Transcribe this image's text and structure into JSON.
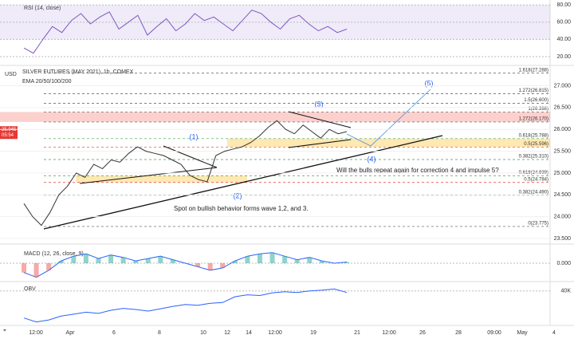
{
  "chart_data": [
    {
      "type": "line",
      "title": "RSI (14, close)",
      "color": "#7e57c2",
      "values": [
        30,
        24,
        40,
        55,
        48,
        62,
        70,
        58,
        66,
        72,
        52,
        60,
        68,
        45,
        55,
        64,
        50,
        58,
        70,
        62,
        66,
        58,
        50,
        62,
        74,
        70,
        60,
        52,
        64,
        68,
        58,
        50,
        55,
        48,
        52
      ],
      "ylim": [
        13.5,
        83
      ],
      "yticks": [
        {
          "value": 80,
          "label": "80.00"
        },
        {
          "value": 60,
          "label": "60.00"
        },
        {
          "value": 40,
          "label": "40.00"
        },
        {
          "value": 20,
          "label": "20.00"
        }
      ]
    },
    {
      "type": "line",
      "title": "SILVER FUTURES (MAY 2021), 1h, COMEX",
      "subtitle": "EMA 20/50/100/200",
      "y_label": "USD",
      "color": "#333333",
      "values": [
        24.3,
        24.0,
        23.8,
        24.1,
        24.5,
        24.7,
        25.0,
        24.9,
        25.2,
        25.1,
        25.3,
        25.25,
        25.45,
        25.6,
        25.5,
        25.45,
        25.4,
        25.3,
        25.2,
        24.95,
        24.85,
        24.8,
        25.4,
        25.5,
        25.55,
        25.6,
        25.7,
        25.85,
        26.05,
        26.2,
        26.0,
        25.9,
        26.1,
        25.95,
        25.8,
        26.0,
        25.9,
        25.95
      ],
      "ylim": [
        23.39,
        27.43
      ],
      "yticks": [
        {
          "value": 27,
          "label": "27.000"
        },
        {
          "value": 26.5,
          "label": "26.500"
        },
        {
          "value": 26,
          "label": "26.000"
        },
        {
          "value": 25.5,
          "label": "25.500"
        },
        {
          "value": 25,
          "label": "25.000"
        },
        {
          "value": 24.5,
          "label": "24.500"
        },
        {
          "value": 24,
          "label": "24.000"
        },
        {
          "value": 23.5,
          "label": "23.500"
        }
      ],
      "last_price": {
        "value": 25.945,
        "label": "25.945"
      },
      "countdown": "05:54",
      "fib_levels": [
        {
          "value": 27.288,
          "label": "1.618(27.288)"
        },
        {
          "value": 26.815,
          "label": "1.272(26.815)"
        },
        {
          "value": 26.6,
          "label": "1.5(26.600)"
        },
        {
          "value": 26.398,
          "label": "1(26.398)"
        },
        {
          "value": 26.17,
          "label": "1.272(26.170)"
        },
        {
          "value": 25.788,
          "label": "0.618(25.788)"
        },
        {
          "value": 25.596,
          "label": "0.5(25.596)"
        },
        {
          "value": 25.31,
          "label": "0.382(25.310)"
        },
        {
          "value": 24.939,
          "label": "0.618(24.939)"
        },
        {
          "value": 24.784,
          "label": "0.5(24.784)"
        },
        {
          "value": 24.49,
          "label": "0.382(24.490)"
        },
        {
          "value": 23.775,
          "label": "0(23.775)"
        }
      ],
      "waves": [
        "(1)",
        "(2)",
        "(3)",
        "(4)",
        "(5)"
      ],
      "annotations": [
        "Will the bulls repeat again for correction 4 and impulse 5?",
        "Spot on bullish behavior forms wave 1,2, and 3."
      ]
    },
    {
      "type": "line",
      "title": "MACD (12, 26, close, 9)",
      "color": "#2962ff",
      "values": [
        -0.08,
        -0.12,
        -0.06,
        0.02,
        0.06,
        0.08,
        0.04,
        0.07,
        0.05,
        0.02,
        0.04,
        0.06,
        0.03,
        0.0,
        -0.03,
        -0.06,
        -0.04,
        0.02,
        0.06,
        0.08,
        0.09,
        0.06,
        0.03,
        0.05,
        0.02,
        0.0,
        0.01
      ],
      "ylim": [
        -0.15,
        0.15
      ],
      "yticks": [
        {
          "value": 0,
          "label": "0.000"
        }
      ]
    },
    {
      "type": "line",
      "title": "OBV",
      "color": "#2962ff",
      "values": [
        -30,
        -40,
        -35,
        -25,
        -20,
        -15,
        -18,
        -10,
        -5,
        -8,
        -12,
        -6,
        0,
        5,
        3,
        8,
        10,
        25,
        30,
        28,
        35,
        38,
        36,
        40,
        42,
        45,
        36
      ],
      "ylim": [
        -45,
        60
      ],
      "yticks": [
        {
          "value": 40,
          "label": "40K"
        }
      ]
    },
    {
      "type": "axis",
      "x_labels": [
        "12:00",
        "Apr",
        "6",
        "8",
        "10",
        "12",
        "14",
        "12:00",
        "19",
        "21",
        "12:00",
        "26",
        "28",
        "09:00",
        "May",
        "4"
      ]
    }
  ]
}
